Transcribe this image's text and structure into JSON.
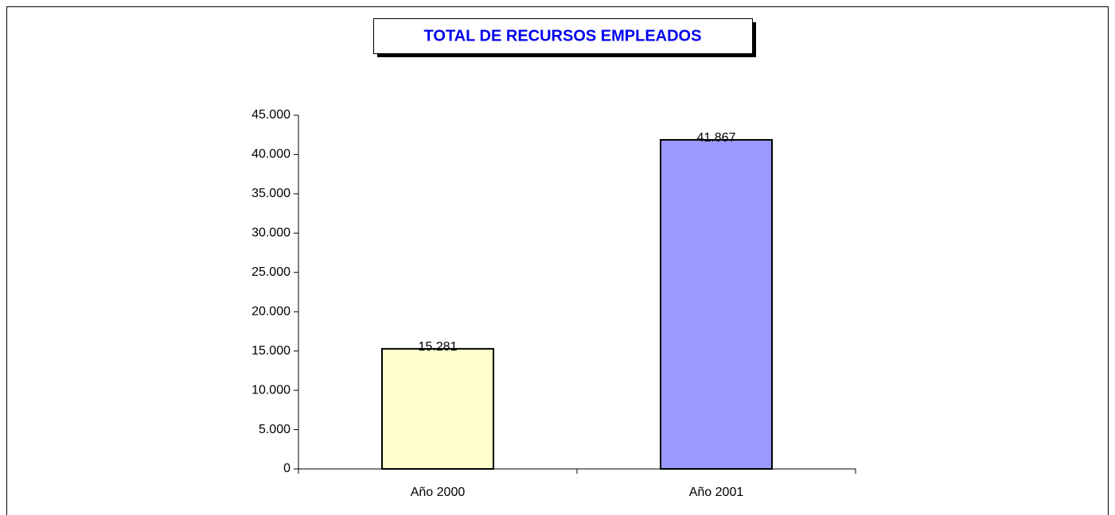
{
  "chart_data": {
    "type": "bar",
    "title": "TOTAL DE RECURSOS EMPLEADOS",
    "categories": [
      "Año 2000",
      "Año 2001"
    ],
    "values": [
      15281,
      41867
    ],
    "value_labels": [
      "15.281",
      "41.867"
    ],
    "colors": [
      "#ffffcc",
      "#9999ff"
    ],
    "ylim": [
      0,
      45000
    ],
    "yticks": [
      0,
      {
        "value": 5000,
        "label": "5.000"
      },
      {
        "value": 10000,
        "label": "10.000"
      },
      {
        "value": 15000,
        "label": "15.000"
      },
      {
        "value": 20000,
        "label": "20.000"
      },
      {
        "value": 25000,
        "label": "25.000"
      },
      {
        "value": 30000,
        "label": "30.000"
      },
      {
        "value": 35000,
        "label": "35.000"
      },
      {
        "value": 40000,
        "label": "40.000"
      },
      {
        "value": 45000,
        "label": "45.000"
      }
    ],
    "grid": false
  }
}
